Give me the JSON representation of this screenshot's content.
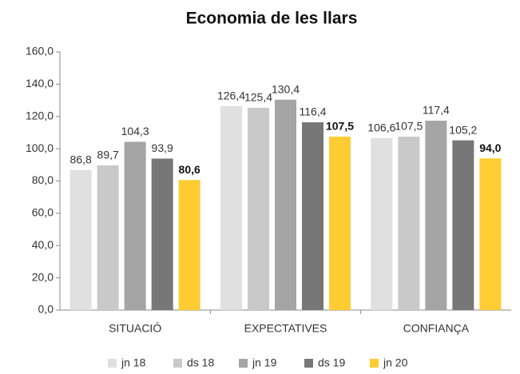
{
  "chart_data": {
    "type": "bar",
    "title": "Economia de les llars",
    "categories": [
      "SITUACIÓ",
      "EXPECTATIVES",
      "CONFIANÇA"
    ],
    "series": [
      {
        "name": "jn 18",
        "color": "#e0e0e0",
        "values": [
          86.8,
          126.4,
          106.6
        ],
        "value_labels": [
          "86,8",
          "126,4",
          "106,6"
        ]
      },
      {
        "name": "ds 18",
        "color": "#c9c9c9",
        "values": [
          89.7,
          125.4,
          107.5
        ],
        "value_labels": [
          "89,7",
          "125,4",
          "107,5"
        ]
      },
      {
        "name": "jn 19",
        "color": "#a5a5a5",
        "values": [
          104.3,
          130.4,
          117.4
        ],
        "value_labels": [
          "104,3",
          "130,4",
          "117,4"
        ]
      },
      {
        "name": "ds 19",
        "color": "#777777",
        "values": [
          93.9,
          116.4,
          105.2
        ],
        "value_labels": [
          "93,9",
          "116,4",
          "105,2"
        ]
      },
      {
        "name": "jn 20",
        "color": "#ffcc33",
        "values": [
          80.6,
          107.5,
          94.0
        ],
        "value_labels": [
          "80,6",
          "107,5",
          "94,0"
        ]
      }
    ],
    "ylim": [
      0,
      160
    ],
    "yticks": [
      {
        "value": 0,
        "label": "0,0"
      },
      {
        "value": 20,
        "label": "20,0"
      },
      {
        "value": 40,
        "label": "40,0"
      },
      {
        "value": 60,
        "label": "60,0"
      },
      {
        "value": 80,
        "label": "80,0"
      },
      {
        "value": 100,
        "label": "100,0"
      },
      {
        "value": 120,
        "label": "120,0"
      },
      {
        "value": 140,
        "label": "140,0"
      },
      {
        "value": 160,
        "label": "160,0"
      }
    ],
    "grid": false,
    "legend": "bottom"
  }
}
